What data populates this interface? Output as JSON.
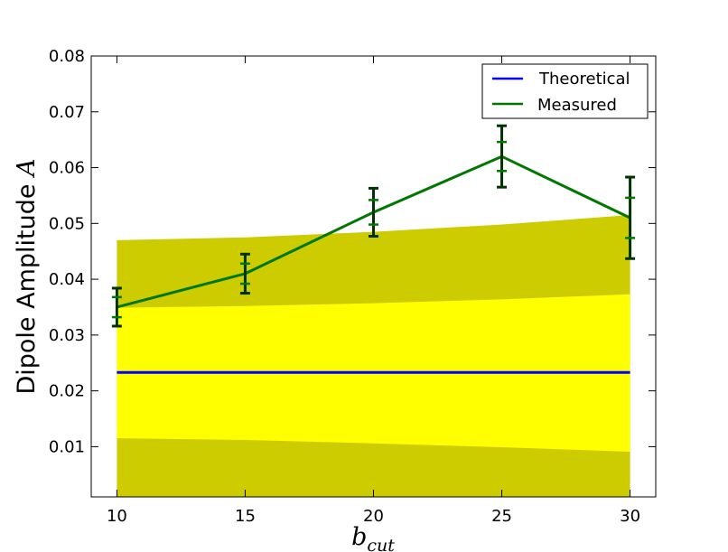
{
  "chart_data": {
    "type": "line",
    "x": [
      10,
      15,
      20,
      25,
      30
    ],
    "xlim": [
      9,
      31
    ],
    "ylim": [
      0.001,
      0.08
    ],
    "x_ticks": [
      10,
      15,
      20,
      25,
      30
    ],
    "y_ticks": [
      0.01,
      0.02,
      0.03,
      0.04,
      0.05,
      0.06,
      0.07,
      0.08
    ],
    "x_tick_labels": [
      "10",
      "15",
      "20",
      "25",
      "30"
    ],
    "y_tick_labels": [
      "0.01",
      "0.02",
      "0.03",
      "0.04",
      "0.05",
      "0.06",
      "0.07",
      "0.08"
    ],
    "xlabel_base": "b",
    "xlabel_sub": "cut",
    "ylabel_text": "Dipole Amplitude ",
    "ylabel_math": "A",
    "grid": false,
    "legend_position": "top-right",
    "bands": [
      {
        "color": "#cccc00",
        "lower": [
          0.0,
          0.0,
          0.0,
          0.0,
          0.0
        ],
        "upper": [
          0.047,
          0.0475,
          0.0485,
          0.0498,
          0.0515
        ]
      },
      {
        "color": "#ffff00",
        "lower": [
          0.0115,
          0.0112,
          0.0106,
          0.0099,
          0.0091
        ],
        "upper": [
          0.0349,
          0.0352,
          0.0357,
          0.0364,
          0.0373
        ]
      }
    ],
    "series": [
      {
        "name": "Theoretical",
        "color": "#0000ff",
        "values": [
          0.0233,
          0.0233,
          0.0233,
          0.0233,
          0.0233
        ]
      },
      {
        "name": "Measured",
        "color": "#007700",
        "values": [
          0.035,
          0.041,
          0.052,
          0.062,
          0.051
        ],
        "err_outer": [
          0.0034,
          0.0035,
          0.0043,
          0.0055,
          0.0073
        ],
        "err_inner": [
          0.0018,
          0.0018,
          0.0022,
          0.0026,
          0.0036
        ],
        "err_color": "#003300"
      }
    ]
  }
}
